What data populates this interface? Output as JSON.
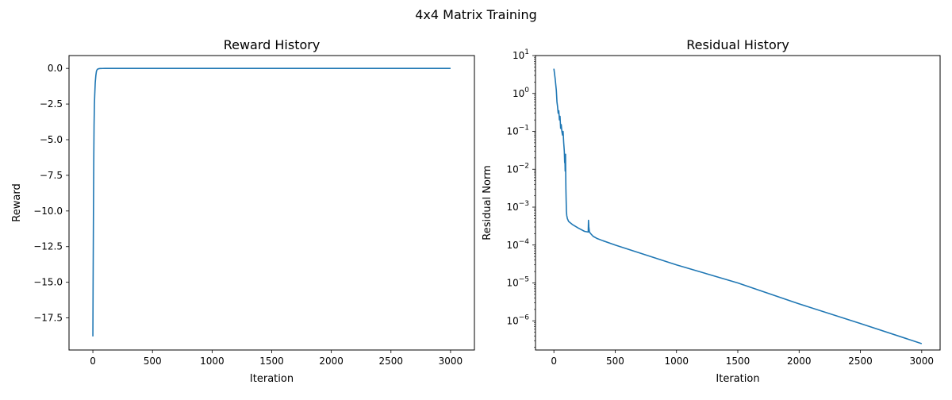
{
  "figure": {
    "suptitle": "4x4 Matrix Training"
  },
  "colors": {
    "line": "#1f77b4",
    "axes": "#000000",
    "background": "#ffffff"
  },
  "chart_data": [
    {
      "type": "line",
      "title": "Reward History",
      "xlabel": "Iteration",
      "ylabel": "Reward",
      "xlim": [
        -200,
        3200
      ],
      "ylim": [
        -19.75,
        0.9
      ],
      "yscale": "linear",
      "grid": false,
      "xticks": [
        0,
        500,
        1000,
        1500,
        2000,
        2500,
        3000
      ],
      "xtick_labels": [
        "0",
        "500",
        "1000",
        "1500",
        "2000",
        "2500",
        "3000"
      ],
      "yticks": [
        0,
        -2.5,
        -5,
        -7.5,
        -10,
        -12.5,
        -15,
        -17.5
      ],
      "ytick_labels": [
        "0.0",
        "−2.5",
        "−5.0",
        "−7.5",
        "−10.0",
        "−12.5",
        "−15.0",
        "−17.5"
      ],
      "series": [
        {
          "x": [
            0,
            2,
            5,
            8,
            10,
            13,
            16,
            20,
            25,
            30,
            35,
            40,
            50,
            60,
            80,
            100,
            500,
            1000,
            1500,
            2000,
            2500,
            3000
          ],
          "y": [
            -18.8,
            -15.0,
            -10.0,
            -6.0,
            -4.0,
            -2.5,
            -1.8,
            -1.0,
            -0.5,
            -0.2,
            -0.1,
            -0.05,
            -0.02,
            -0.01,
            -0.005,
            -0.003,
            -0.001,
            -0.0005,
            -0.0003,
            -0.0002,
            -0.0001,
            -0.0001
          ]
        }
      ]
    },
    {
      "type": "line",
      "title": "Residual History",
      "xlabel": "Iteration",
      "ylabel": "Residual Norm",
      "xlim": [
        -150,
        3150
      ],
      "ylim": [
        1.7e-07,
        10
      ],
      "yscale": "log",
      "grid": false,
      "xticks": [
        0,
        500,
        1000,
        1500,
        2000,
        2500,
        3000
      ],
      "xtick_labels": [
        "0",
        "500",
        "1000",
        "1500",
        "2000",
        "2500",
        "3000"
      ],
      "yticks": [
        10,
        1,
        0.1,
        0.01,
        0.001,
        0.0001,
        1e-05,
        1e-06
      ],
      "ytick_bases": [
        "10",
        "10",
        "10",
        "10",
        "10",
        "10",
        "10",
        "10"
      ],
      "ytick_exponents": [
        "1",
        "0",
        "−1",
        "−2",
        "−3",
        "−4",
        "−5",
        "−6"
      ],
      "series": [
        {
          "x": [
            0,
            10,
            20,
            25,
            30,
            35,
            40,
            45,
            50,
            55,
            60,
            65,
            70,
            75,
            80,
            85,
            88,
            90,
            92,
            94,
            95,
            96,
            98,
            100,
            102,
            105,
            110,
            120,
            150,
            200,
            250,
            280,
            282,
            285,
            288,
            290,
            300,
            320,
            350,
            400,
            500,
            1000,
            1500,
            2000,
            2500,
            3000
          ],
          "y": [
            4.5,
            2.5,
            1.2,
            0.6,
            0.45,
            0.3,
            0.35,
            0.2,
            0.25,
            0.12,
            0.15,
            0.1,
            0.08,
            0.1,
            0.05,
            0.03,
            0.015,
            0.02,
            0.009,
            0.012,
            0.025,
            0.01,
            0.003,
            0.0015,
            0.0008,
            0.0006,
            0.0005,
            0.00042,
            0.00035,
            0.00028,
            0.00023,
            0.00022,
            0.00045,
            0.0003,
            0.00025,
            0.00022,
            0.0002,
            0.00017,
            0.00015,
            0.00013,
            0.0001,
            3e-05,
            1e-05,
            2.8e-06,
            8.5e-07,
            2.5e-07
          ]
        }
      ]
    }
  ]
}
